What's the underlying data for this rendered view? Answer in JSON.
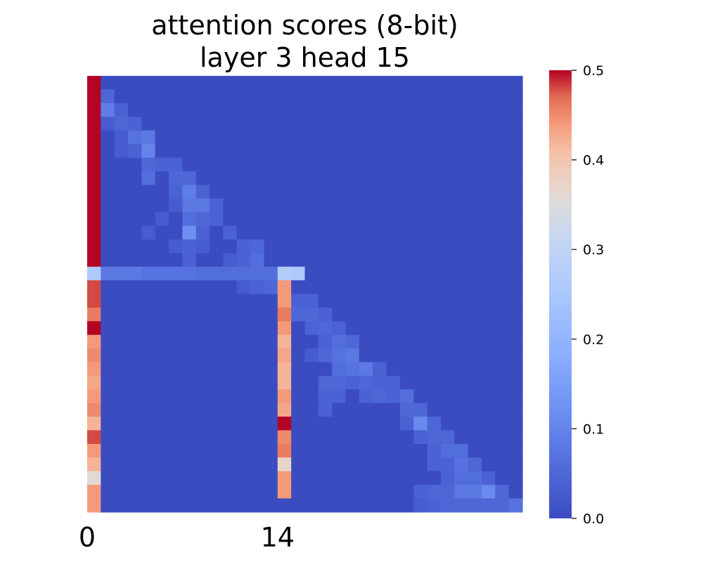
{
  "chart_data": {
    "type": "heatmap",
    "title": "attention scores (8-bit)",
    "subtitle": "layer 3 head 15",
    "size": 32,
    "x_ticks": [
      {
        "index": 0,
        "label": "0"
      },
      {
        "index": 14,
        "label": "14"
      }
    ],
    "colorbar": {
      "min": 0.0,
      "max": 0.5,
      "ticks": [
        "0.0",
        "0.1",
        "0.2",
        "0.3",
        "0.4",
        "0.5"
      ],
      "colormap": "coolwarm"
    },
    "col0_values": [
      0.5,
      0.5,
      0.5,
      0.5,
      0.5,
      0.5,
      0.5,
      0.5,
      0.5,
      0.5,
      0.5,
      0.5,
      0.5,
      0.5,
      0.26,
      0.48,
      0.48,
      0.46,
      0.5,
      0.44,
      0.45,
      0.44,
      0.43,
      0.44,
      0.45,
      0.42,
      0.48,
      0.44,
      0.42,
      0.36,
      0.44,
      0.44
    ],
    "col14_values": [
      0.27,
      0.44,
      0.44,
      0.46,
      0.44,
      0.42,
      0.43,
      0.42,
      0.42,
      0.44,
      0.43,
      0.5,
      0.45,
      0.46,
      0.37,
      0.44,
      0.44
    ],
    "row14_values": [
      0.26,
      0.08,
      0.08,
      0.08,
      0.07,
      0.07,
      0.07,
      0.07,
      0.06,
      0.06,
      0.06,
      0.06,
      0.06,
      0.06,
      0.1,
      0.26
    ],
    "diagonal": [
      [
        1,
        1,
        0.05
      ],
      [
        2,
        1,
        0.09
      ],
      [
        2,
        2,
        0.04
      ],
      [
        3,
        1,
        0.03
      ],
      [
        3,
        2,
        0.05
      ],
      [
        3,
        3,
        0.04
      ],
      [
        4,
        3,
        0.07
      ],
      [
        4,
        4,
        0.08
      ],
      [
        4,
        2,
        0.03
      ],
      [
        5,
        4,
        0.1
      ],
      [
        5,
        3,
        0.04
      ],
      [
        5,
        2,
        0.03
      ],
      [
        6,
        4,
        0.05
      ],
      [
        6,
        5,
        0.04
      ],
      [
        6,
        6,
        0.04
      ],
      [
        7,
        4,
        0.06
      ],
      [
        7,
        6,
        0.05
      ],
      [
        7,
        7,
        0.05
      ],
      [
        8,
        7,
        0.09
      ],
      [
        8,
        6,
        0.04
      ],
      [
        8,
        8,
        0.04
      ],
      [
        9,
        7,
        0.08
      ],
      [
        9,
        8,
        0.08
      ],
      [
        9,
        6,
        0.03
      ],
      [
        9,
        9,
        0.04
      ],
      [
        10,
        7,
        0.06
      ],
      [
        10,
        8,
        0.05
      ],
      [
        10,
        9,
        0.04
      ],
      [
        10,
        5,
        0.03
      ],
      [
        11,
        7,
        0.12
      ],
      [
        11,
        8,
        0.04
      ],
      [
        11,
        10,
        0.04
      ],
      [
        11,
        4,
        0.03
      ],
      [
        12,
        6,
        0.03
      ],
      [
        12,
        7,
        0.04
      ],
      [
        12,
        8,
        0.03
      ],
      [
        12,
        11,
        0.04
      ],
      [
        12,
        12,
        0.05
      ],
      [
        13,
        7,
        0.04
      ],
      [
        13,
        11,
        0.04
      ],
      [
        13,
        12,
        0.06
      ],
      [
        13,
        10,
        0.03
      ],
      [
        15,
        12,
        0.04
      ],
      [
        15,
        13,
        0.05
      ],
      [
        15,
        11,
        0.03
      ],
      [
        16,
        15,
        0.04
      ],
      [
        16,
        16,
        0.04
      ],
      [
        17,
        15,
        0.05
      ],
      [
        17,
        16,
        0.05
      ],
      [
        17,
        17,
        0.04
      ],
      [
        18,
        16,
        0.04
      ],
      [
        18,
        17,
        0.05
      ],
      [
        18,
        18,
        0.04
      ],
      [
        19,
        17,
        0.04
      ],
      [
        19,
        18,
        0.06
      ],
      [
        19,
        19,
        0.05
      ],
      [
        20,
        17,
        0.05
      ],
      [
        20,
        18,
        0.07
      ],
      [
        20,
        19,
        0.08
      ],
      [
        20,
        16,
        0.03
      ],
      [
        21,
        18,
        0.06
      ],
      [
        21,
        19,
        0.07
      ],
      [
        21,
        20,
        0.08
      ],
      [
        21,
        21,
        0.04
      ],
      [
        22,
        17,
        0.05
      ],
      [
        22,
        18,
        0.05
      ],
      [
        22,
        19,
        0.04
      ],
      [
        22,
        20,
        0.05
      ],
      [
        22,
        21,
        0.04
      ],
      [
        22,
        22,
        0.04
      ],
      [
        23,
        17,
        0.04
      ],
      [
        23,
        18,
        0.04
      ],
      [
        23,
        20,
        0.04
      ],
      [
        23,
        21,
        0.05
      ],
      [
        23,
        22,
        0.04
      ],
      [
        23,
        23,
        0.06
      ],
      [
        24,
        17,
        0.04
      ],
      [
        24,
        23,
        0.05
      ],
      [
        24,
        24,
        0.05
      ],
      [
        25,
        23,
        0.04
      ],
      [
        25,
        24,
        0.11
      ],
      [
        25,
        25,
        0.05
      ],
      [
        26,
        24,
        0.04
      ],
      [
        26,
        25,
        0.05
      ],
      [
        26,
        26,
        0.05
      ],
      [
        27,
        25,
        0.04
      ],
      [
        27,
        26,
        0.06
      ],
      [
        27,
        27,
        0.06
      ],
      [
        28,
        25,
        0.04
      ],
      [
        28,
        26,
        0.04
      ],
      [
        28,
        27,
        0.07
      ],
      [
        28,
        28,
        0.05
      ],
      [
        29,
        26,
        0.04
      ],
      [
        29,
        27,
        0.06
      ],
      [
        29,
        28,
        0.06
      ],
      [
        29,
        29,
        0.04
      ],
      [
        30,
        24,
        0.04
      ],
      [
        30,
        25,
        0.05
      ],
      [
        30,
        26,
        0.05
      ],
      [
        30,
        27,
        0.08
      ],
      [
        30,
        28,
        0.08
      ],
      [
        30,
        29,
        0.11
      ],
      [
        30,
        30,
        0.05
      ],
      [
        31,
        24,
        0.03
      ],
      [
        31,
        25,
        0.04
      ],
      [
        31,
        26,
        0.05
      ],
      [
        31,
        27,
        0.05
      ],
      [
        31,
        28,
        0.05
      ],
      [
        31,
        29,
        0.05
      ],
      [
        31,
        30,
        0.05
      ],
      [
        31,
        31,
        0.07
      ]
    ],
    "background_value": 0.0
  }
}
